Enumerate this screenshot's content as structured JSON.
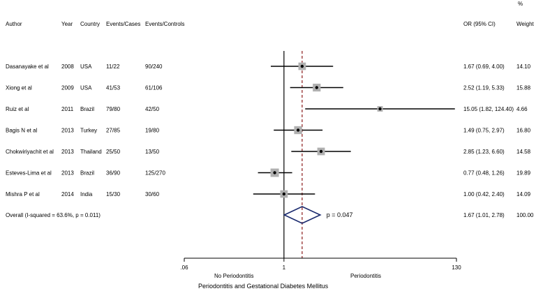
{
  "chart_data": {
    "type": "forest",
    "headers": {
      "author": "Author",
      "year": "Year",
      "country": "Country",
      "events_cases": "Events/Cases",
      "events_controls": "Events/Controls",
      "or_ci": "OR (95% CI)",
      "weight_pct": "%",
      "weight": "Weight"
    },
    "studies": [
      {
        "author": "Dasanayake et al",
        "year": "2008",
        "country": "USA",
        "events_cases": "11/22",
        "events_controls": "90/240",
        "or": 1.67,
        "lower": 0.69,
        "upper": 4.0,
        "or_ci": "1.67 (0.69, 4.00)",
        "weight": "14.10"
      },
      {
        "author": "Xiong et al",
        "year": "2009",
        "country": "USA",
        "events_cases": "41/53",
        "events_controls": "61/106",
        "or": 2.52,
        "lower": 1.19,
        "upper": 5.33,
        "or_ci": "2.52 (1.19, 5.33)",
        "weight": "15.88"
      },
      {
        "author": "Ruiz et al",
        "year": "2011",
        "country": "Brazil",
        "events_cases": "79/80",
        "events_controls": "42/50",
        "or": 15.05,
        "lower": 1.82,
        "upper": 124.4,
        "or_ci": "15.05 (1.82, 124.40)",
        "weight": "4.66"
      },
      {
        "author": "Bagis N et al",
        "year": "2013",
        "country": "Turkey",
        "events_cases": "27/85",
        "events_controls": "19/80",
        "or": 1.49,
        "lower": 0.75,
        "upper": 2.97,
        "or_ci": "1.49 (0.75, 2.97)",
        "weight": "16.80"
      },
      {
        "author": "Chokwiriyachit et al",
        "year": "2013",
        "country": "Thailand",
        "events_cases": "25/50",
        "events_controls": "13/50",
        "or": 2.85,
        "lower": 1.23,
        "upper": 6.6,
        "or_ci": "2.85 (1.23, 6.60)",
        "weight": "14.58"
      },
      {
        "author": "Esteves-Lima et al",
        "year": "2013",
        "country": "Brazil",
        "events_cases": "36/90",
        "events_controls": "125/270",
        "or": 0.77,
        "lower": 0.48,
        "upper": 1.26,
        "or_ci": "0.77 (0.48, 1.26)",
        "weight": "19.89"
      },
      {
        "author": "Mishra P et al",
        "year": "2014",
        "country": "India",
        "events_cases": "15/30",
        "events_controls": "30/60",
        "or": 1.0,
        "lower": 0.42,
        "upper": 2.4,
        "or_ci": "1.00 (0.42, 2.40)",
        "weight": "14.09"
      }
    ],
    "overall": {
      "label": "Overall  (I-squared = 63.6%, p = 0.011)",
      "or": 1.67,
      "lower": 1.01,
      "upper": 2.78,
      "or_ci": "1.67 (1.01, 2.78)",
      "weight": "100.00",
      "p_label": "p = 0.047"
    },
    "x_axis": {
      "scale": "log",
      "range": [
        0.06,
        130
      ],
      "ticks": [
        {
          "value": 0.06,
          "label": ".06"
        },
        {
          "value": 1,
          "label": "1"
        },
        {
          "value": 130,
          "label": "130"
        }
      ],
      "left_label": "No Periodontitis",
      "right_label": "Periodontitis",
      "title": "Periodontitis and Gestational Diabetes Mellitus"
    },
    "reference_line": 1,
    "pooled_line": 1.67,
    "colors": {
      "diamond": "#1a2a6e",
      "pooled_line": "#8b1a1a",
      "box": "#b0b0b0",
      "line": "#000000"
    }
  }
}
